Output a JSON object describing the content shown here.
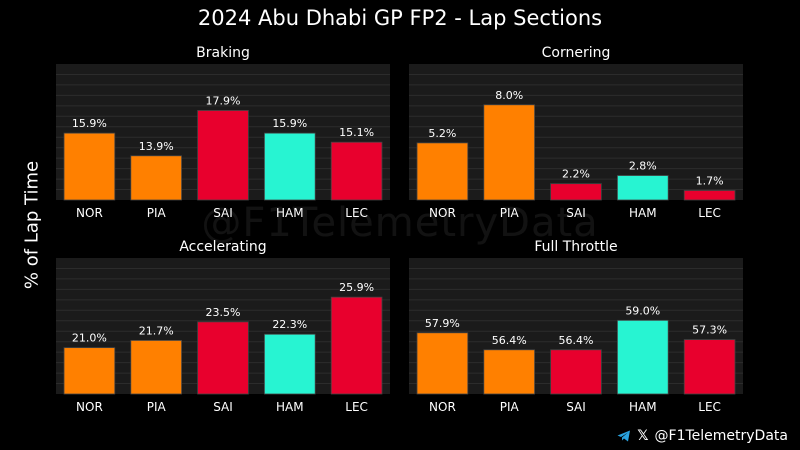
{
  "title": "2024 Abu Dhabi GP FP2 - Lap Sections",
  "ylabel": "% of Lap Time",
  "watermark": "@F1TelemetryData",
  "footer": {
    "handle": "@F1TelemetryData",
    "icons": [
      "telegram-icon",
      "x-icon"
    ]
  },
  "colors": {
    "NOR": "#ff8000",
    "PIA": "#ff8000",
    "SAI": "#e8002d",
    "HAM": "#27f4d2",
    "LEC": "#e8002d",
    "background": "#000000",
    "panel": "#1b1b1b"
  },
  "chart_data": [
    {
      "type": "bar",
      "title": "Braking",
      "categories": [
        "NOR",
        "PIA",
        "SAI",
        "HAM",
        "LEC"
      ],
      "values": [
        15.9,
        13.9,
        17.9,
        15.9,
        15.1
      ],
      "labels": [
        "15.9%",
        "13.9%",
        "17.9%",
        "15.9%",
        "15.1%"
      ],
      "ylim": [
        10,
        22
      ]
    },
    {
      "type": "bar",
      "title": "Cornering",
      "categories": [
        "NOR",
        "PIA",
        "SAI",
        "HAM",
        "LEC"
      ],
      "values": [
        5.2,
        8.0,
        2.2,
        2.8,
        1.7
      ],
      "labels": [
        "5.2%",
        "8.0%",
        "2.2%",
        "2.8%",
        "1.7%"
      ],
      "ylim": [
        1,
        11
      ]
    },
    {
      "type": "bar",
      "title": "Accelerating",
      "categories": [
        "NOR",
        "PIA",
        "SAI",
        "HAM",
        "LEC"
      ],
      "values": [
        21.0,
        21.7,
        23.5,
        22.3,
        25.9
      ],
      "labels": [
        "21.0%",
        "21.7%",
        "23.5%",
        "22.3%",
        "25.9%"
      ],
      "ylim": [
        16.5,
        29.7
      ]
    },
    {
      "type": "bar",
      "title": "Full Throttle",
      "categories": [
        "NOR",
        "PIA",
        "SAI",
        "HAM",
        "LEC"
      ],
      "values": [
        57.9,
        56.4,
        56.4,
        59.0,
        57.3
      ],
      "labels": [
        "57.9%",
        "56.4%",
        "56.4%",
        "59.0%",
        "57.3%"
      ],
      "ylim": [
        52.5,
        64.5
      ]
    }
  ]
}
